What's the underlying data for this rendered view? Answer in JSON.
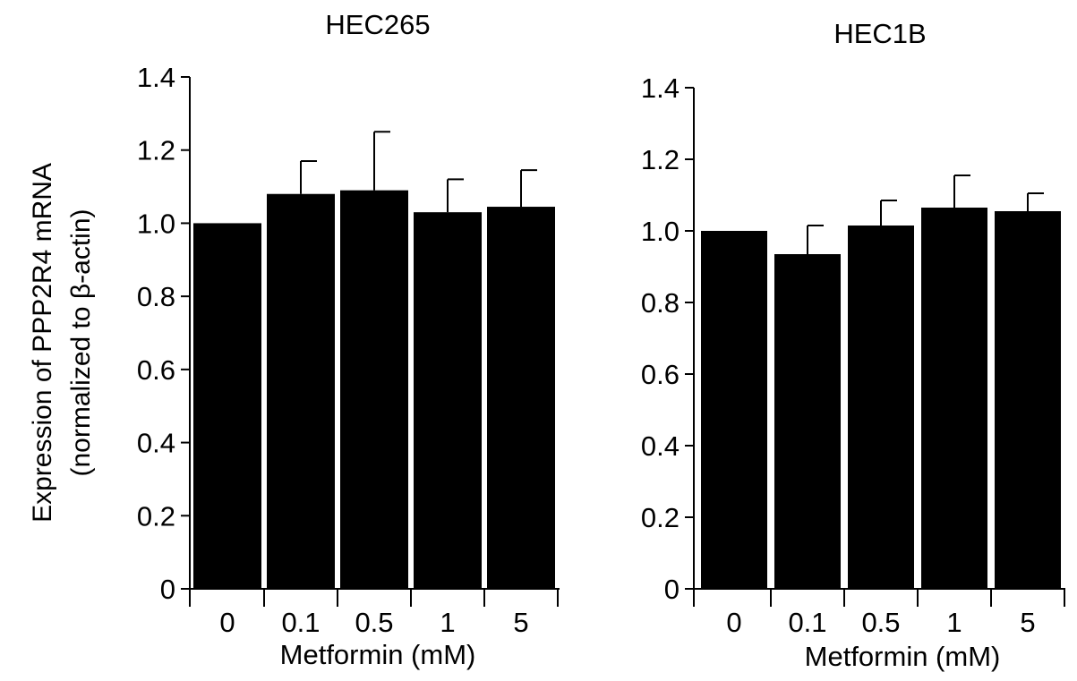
{
  "figure": {
    "ylabel_line1": "Expression of  PPP2R4 mRNA",
    "ylabel_line2": "(normalized to  β-actin)"
  },
  "chart_data": [
    {
      "type": "bar",
      "title": "HEC265",
      "xlabel": "Metformin (mM)",
      "ylabel": "Expression of PPP2R4 mRNA (normalized to β-actin)",
      "categories": [
        "0",
        "0.1",
        "0.5",
        "1",
        "5"
      ],
      "values": [
        1.0,
        1.08,
        1.09,
        1.03,
        1.045
      ],
      "errors": [
        0.0,
        0.09,
        0.16,
        0.09,
        0.1
      ],
      "ylim": [
        0,
        1.4
      ],
      "yticks": [
        "0",
        "0.2",
        "0.4",
        "0.6",
        "0.8",
        "1.0",
        "1.2",
        "1.4"
      ],
      "bar_color": "#000000",
      "grid": false
    },
    {
      "type": "bar",
      "title": "HEC1B",
      "xlabel": "Metformin (mM)",
      "ylabel": "Expression of PPP2R4 mRNA (normalized to β-actin)",
      "categories": [
        "0",
        "0.1",
        "0.5",
        "1",
        "5"
      ],
      "values": [
        1.0,
        0.935,
        1.015,
        1.065,
        1.055
      ],
      "errors": [
        0.0,
        0.08,
        0.07,
        0.09,
        0.05
      ],
      "ylim": [
        0,
        1.4
      ],
      "yticks": [
        "0",
        "0.2",
        "0.4",
        "0.6",
        "0.8",
        "1.0",
        "1.2",
        "1.4"
      ],
      "bar_color": "#000000",
      "grid": false
    }
  ]
}
